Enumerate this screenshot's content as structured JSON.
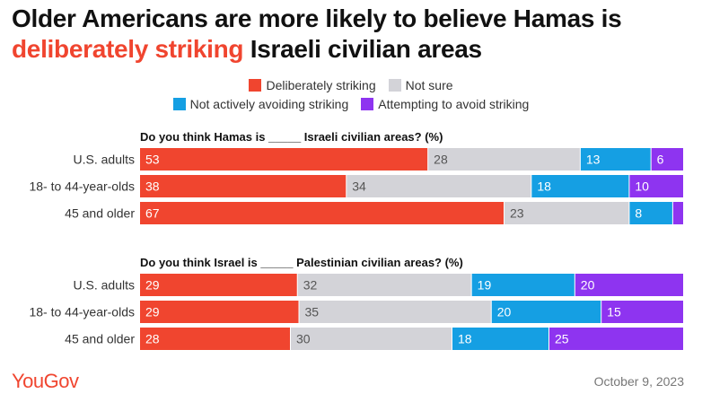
{
  "title": {
    "line1": "Older Americans are more likely to believe Hamas is",
    "highlight": "deliberately striking",
    "line2_rest": " Israeli civilian areas"
  },
  "legend": [
    {
      "label": "Deliberately striking",
      "color": "#f0452f"
    },
    {
      "label": "Not sure",
      "color": "#d3d3d8"
    },
    {
      "label": "Not actively avoiding striking",
      "color": "#159fe3"
    },
    {
      "label": "Attempting to avoid striking",
      "color": "#8e34f0"
    }
  ],
  "chart_data": [
    {
      "type": "bar",
      "stacked": true,
      "orientation": "horizontal",
      "title": "Do you think Hamas is _____ Israeli civilian areas? (%)",
      "categories": [
        "U.S. adults",
        "18- to 44-year-olds",
        "45 and older"
      ],
      "series": [
        {
          "name": "Deliberately striking",
          "values": [
            53,
            38,
            67
          ]
        },
        {
          "name": "Not sure",
          "values": [
            28,
            34,
            23
          ]
        },
        {
          "name": "Not actively avoiding striking",
          "values": [
            13,
            18,
            8
          ]
        },
        {
          "name": "Attempting to avoid striking",
          "values": [
            6,
            10,
            2
          ]
        }
      ],
      "value_labels": [
        [
          "53",
          "38",
          "67"
        ],
        [
          "28",
          "34",
          "23"
        ],
        [
          "13",
          "18",
          "8"
        ],
        [
          "6",
          "10",
          ""
        ]
      ]
    },
    {
      "type": "bar",
      "stacked": true,
      "orientation": "horizontal",
      "title": "Do you think Israel is _____ Palestinian civilian areas? (%)",
      "categories": [
        "U.S. adults",
        "18- to 44-year-olds",
        "45 and older"
      ],
      "series": [
        {
          "name": "Deliberately striking",
          "values": [
            29,
            29,
            28
          ]
        },
        {
          "name": "Not sure",
          "values": [
            32,
            35,
            30
          ]
        },
        {
          "name": "Not actively avoiding striking",
          "values": [
            19,
            20,
            18
          ]
        },
        {
          "name": "Attempting to avoid striking",
          "values": [
            20,
            15,
            25
          ]
        }
      ],
      "value_labels": [
        [
          "29",
          "29",
          "28"
        ],
        [
          "32",
          "35",
          "30"
        ],
        [
          "19",
          "20",
          "18"
        ],
        [
          "20",
          "15",
          "25"
        ]
      ]
    }
  ],
  "footer": {
    "logo": "YouGov",
    "date": "October 9, 2023"
  }
}
